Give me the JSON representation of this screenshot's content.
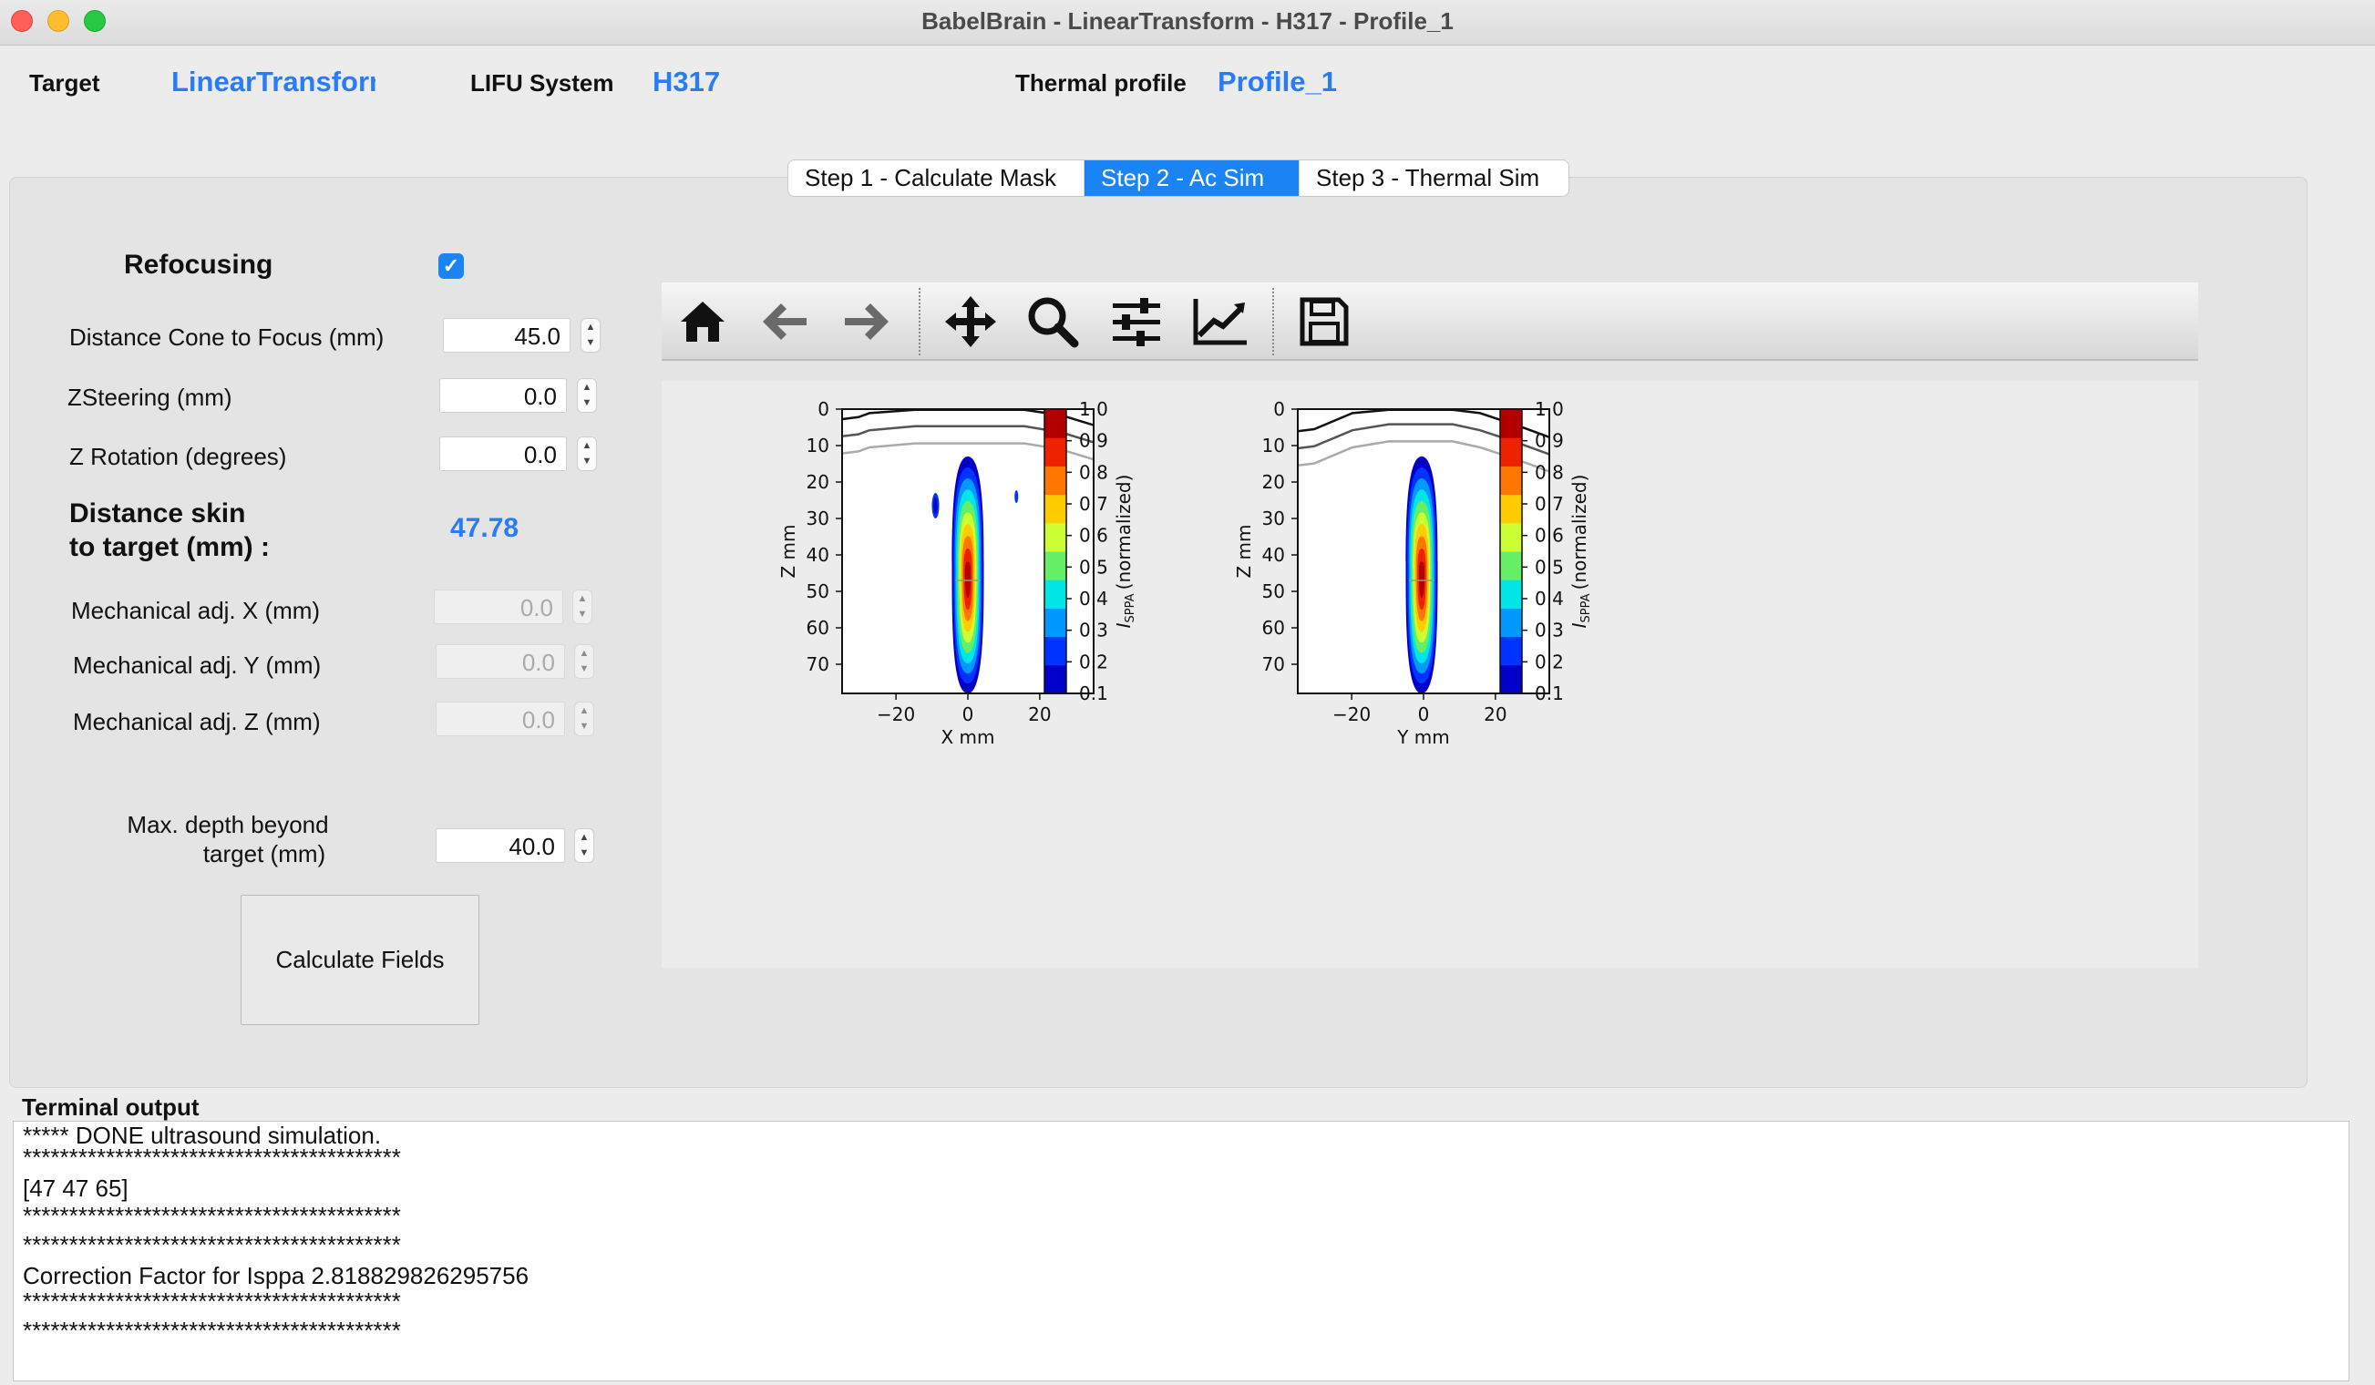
{
  "window": {
    "title": "BabelBrain - LinearTransform - H317 - Profile_1"
  },
  "header": {
    "target_label": "Target",
    "target_value": "LinearTransform",
    "lifu_label": "LIFU System",
    "lifu_value": "H317",
    "thermal_label": "Thermal profile",
    "thermal_value": "Profile_1"
  },
  "tabs": [
    {
      "label": "Step 1 - Calculate Mask",
      "active": false
    },
    {
      "label": "Step 2 - Ac Sim",
      "active": true
    },
    {
      "label": "Step 3 - Thermal Sim",
      "active": false
    }
  ],
  "form": {
    "refocusing_label": "Refocusing",
    "refocusing_checked": true,
    "cone_label": "Distance Cone to Focus (mm)",
    "cone_value": "45.0",
    "zsteering_label": "ZSteering  (mm)",
    "zsteering_value": "0.0",
    "zrotation_label": "Z Rotation (degrees)",
    "zrotation_value": "0.0",
    "dist_skin_label_line1": "Distance skin",
    "dist_skin_label_line2": "to target (mm) :",
    "dist_skin_value": "47.78",
    "mech_x_label": "Mechanical adj. X (mm)",
    "mech_x_value": "0.0",
    "mech_y_label": "Mechanical adj. Y (mm)",
    "mech_y_value": "0.0",
    "mech_z_label": "Mechanical adj. Z (mm)",
    "mech_z_value": "0.0",
    "max_depth_label_line1": "Max. depth beyond",
    "max_depth_label_line2": "target (mm)",
    "max_depth_value": "40.0",
    "calc_button": "Calculate Fields"
  },
  "toolbar_icons": [
    "home-icon",
    "back-arrow-icon",
    "forward-arrow-icon",
    "pan-icon",
    "zoom-icon",
    "configure-subplots-icon",
    "edit-axis-icon",
    "save-icon"
  ],
  "chart_data": [
    {
      "type": "heatmap",
      "xlabel": "X mm",
      "ylabel": "Z mm",
      "xticks": [
        "−20",
        "0",
        "20"
      ],
      "yticks": [
        "0",
        "10",
        "20",
        "30",
        "40",
        "50",
        "60",
        "70"
      ],
      "xlim": [
        -35,
        35
      ],
      "ylim": [
        78,
        0
      ],
      "focus_x": 0,
      "focus_z": 47,
      "colorbar": {
        "label": "ISPPA (normalized)",
        "ticks": [
          "0.1",
          "0.2",
          "0.3",
          "0.4",
          "0.5",
          "0.6",
          "0.7",
          "0.8",
          "0.9",
          "1.0"
        ],
        "colors": [
          "#0000c8",
          "#0033ff",
          "#0099ff",
          "#00e5e5",
          "#66ee66",
          "#ccff33",
          "#ffcc00",
          "#ff7700",
          "#ee2200",
          "#b20000"
        ]
      }
    },
    {
      "type": "heatmap",
      "xlabel": "Y mm",
      "ylabel": "Z mm",
      "xticks": [
        "−20",
        "0",
        "20"
      ],
      "yticks": [
        "0",
        "10",
        "20",
        "30",
        "40",
        "50",
        "60",
        "70"
      ],
      "xlim": [
        -35,
        35
      ],
      "ylim": [
        78,
        0
      ],
      "focus_x": 0,
      "focus_z": 47,
      "colorbar": {
        "label": "ISPPA (normalized)",
        "ticks": [
          "0.1",
          "0.2",
          "0.3",
          "0.4",
          "0.5",
          "0.6",
          "0.7",
          "0.8",
          "0.9",
          "1.0"
        ],
        "colors": [
          "#0000c8",
          "#0033ff",
          "#0099ff",
          "#00e5e5",
          "#66ee66",
          "#ccff33",
          "#ffcc00",
          "#ff7700",
          "#ee2200",
          "#b20000"
        ]
      }
    }
  ],
  "terminal": {
    "label": "Terminal output",
    "lines": [
      "***** DONE ultrasound simulation.",
      "*****************************************",
      "[47 47 65]",
      "*****************************************",
      "*****************************************",
      "Correction Factor for Isppa 2.818829826295756",
      "*****************************************",
      "*****************************************"
    ]
  }
}
